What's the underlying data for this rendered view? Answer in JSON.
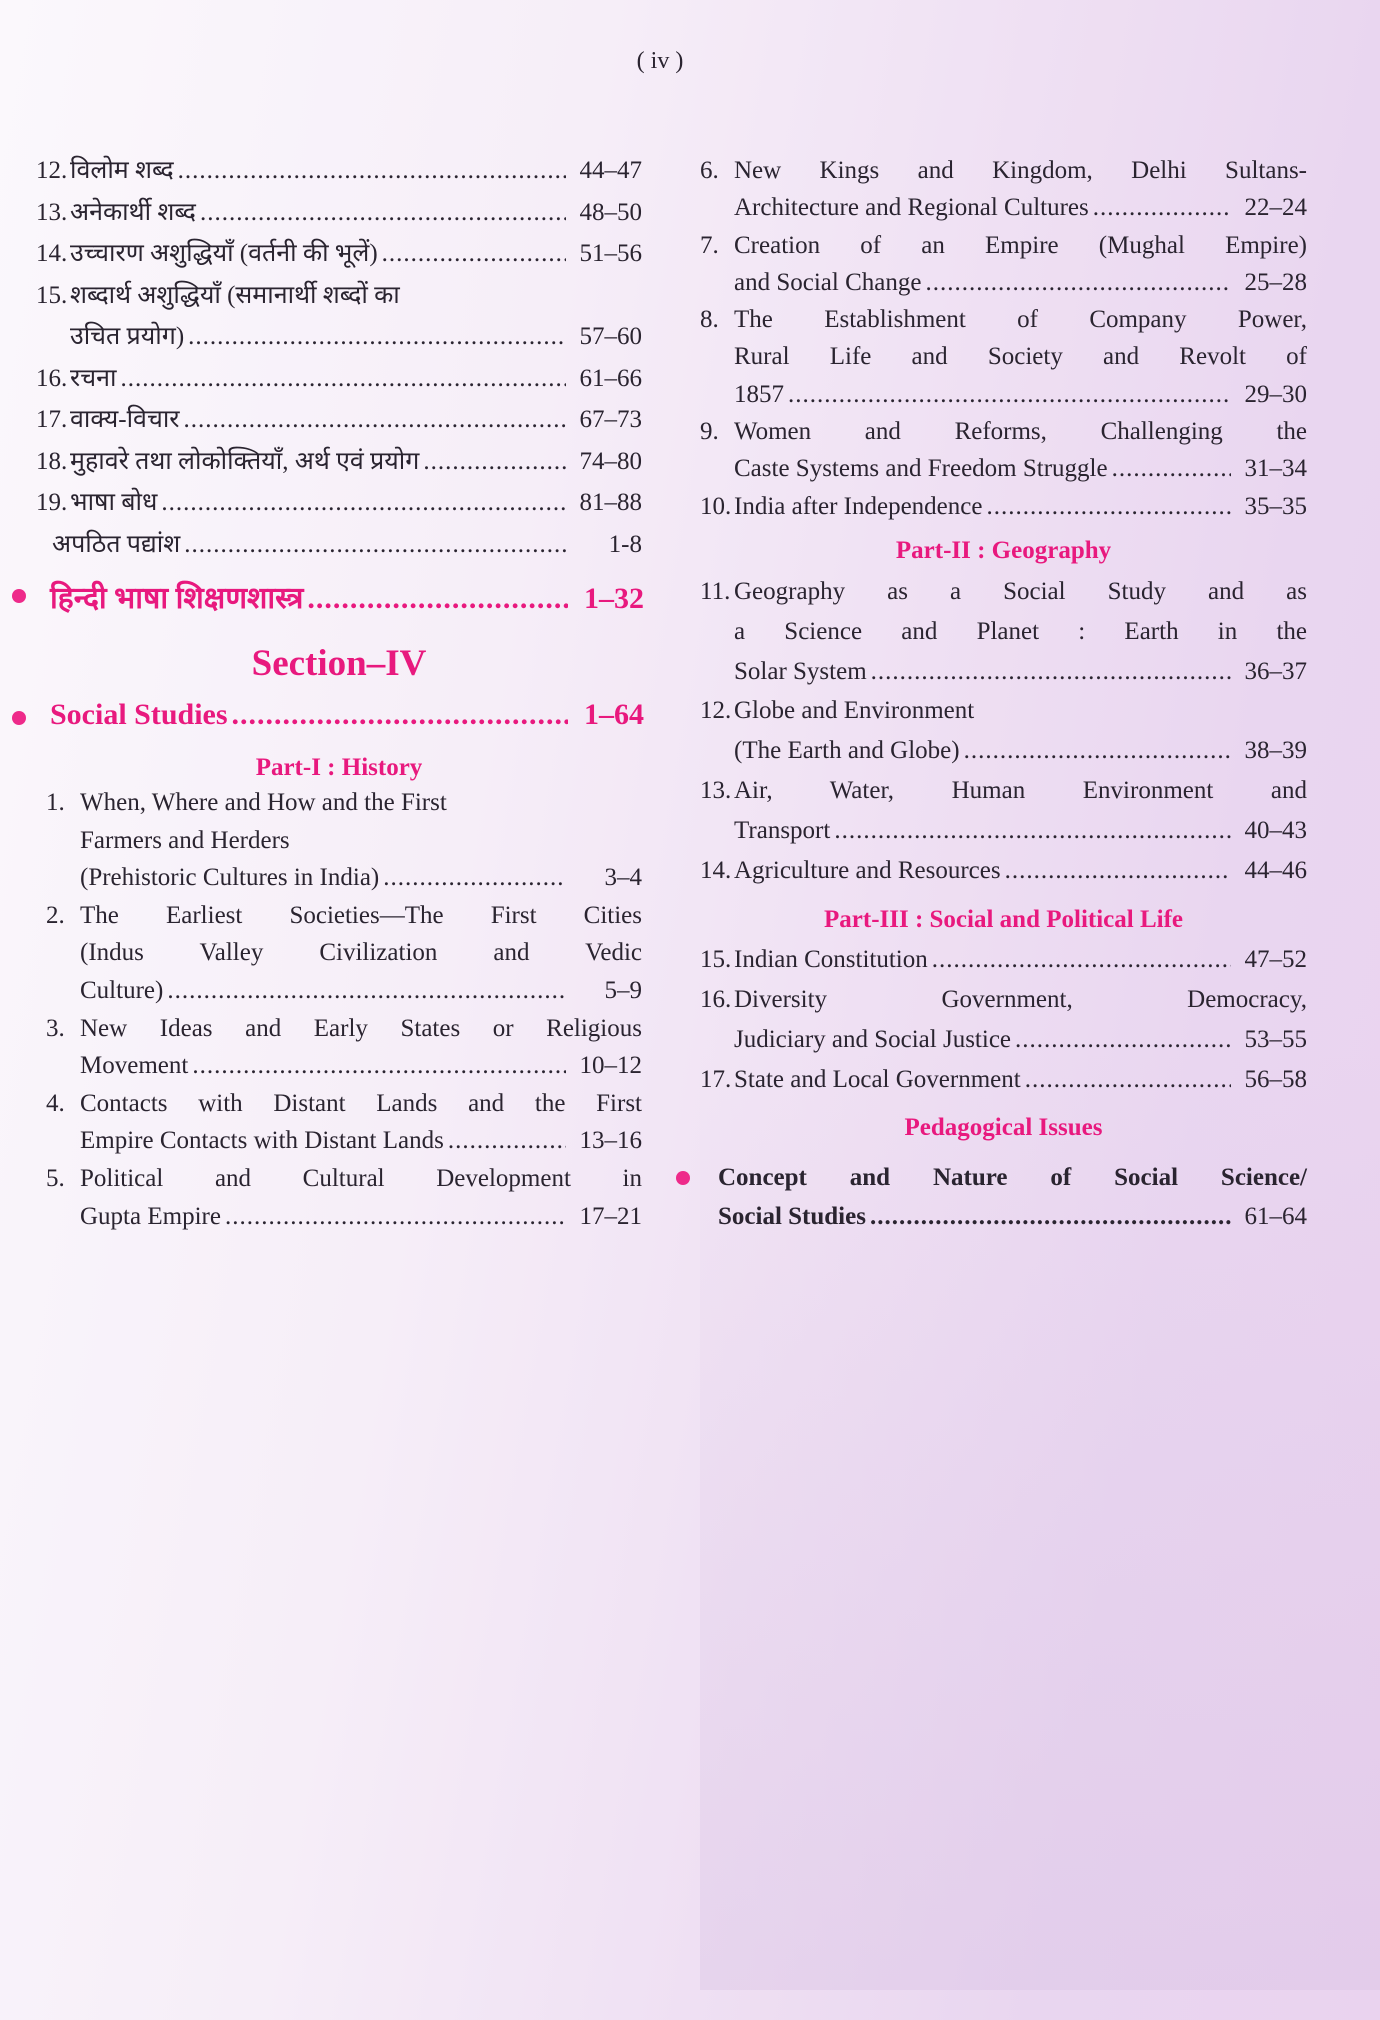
{
  "page_number": "( iv )",
  "colors": {
    "accent": "#e8197e",
    "text": "#2a2430"
  },
  "left": {
    "hindi_items": [
      {
        "num": "12.",
        "lines": [
          "विलोम शब्द"
        ],
        "pages": "44–47"
      },
      {
        "num": "13.",
        "lines": [
          "अनेकार्थी शब्द"
        ],
        "pages": "48–50"
      },
      {
        "num": "14.",
        "lines": [
          "उच्चारण अशुद्धियाँ (वर्तनी की भूलें)"
        ],
        "pages": "51–56"
      },
      {
        "num": "15.",
        "lines": [
          "शब्दार्थ अशुद्धियाँ (समानार्थी शब्दों का",
          "उचित प्रयोग)"
        ],
        "pages": "57–60"
      },
      {
        "num": "16.",
        "lines": [
          "रचना"
        ],
        "pages": "61–66"
      },
      {
        "num": "17.",
        "lines": [
          "वाक्य-विचार"
        ],
        "pages": "67–73"
      },
      {
        "num": "18.",
        "lines": [
          "मुहावरे तथा लोकोक्तियाँ, अर्थ एवं प्रयोग"
        ],
        "pages": "74–80"
      },
      {
        "num": "19.",
        "lines": [
          "भाषा बोध"
        ],
        "pages": "81–88"
      },
      {
        "num": "",
        "lines": [
          "अपठित पद्यांश"
        ],
        "pages": "1-8"
      }
    ],
    "hindi_pedagogy": {
      "label": "हिन्दी भाषा शिक्षणशास्त्र",
      "pages": "1–32"
    },
    "section_title": "Section–IV",
    "social_studies": {
      "label": "Social Studies",
      "pages": "1–64"
    },
    "part1_title": "Part-I : History",
    "history_items": [
      {
        "num": "1.",
        "lines": [
          "When, Where and How and the First",
          "Farmers and Herders",
          "(Prehistoric Cultures in India)"
        ],
        "pages": "3–4"
      },
      {
        "num": "2.",
        "lines": [
          "The Earliest Societies—The First Cities",
          "(Indus Valley Civilization and Vedic",
          "Culture)"
        ],
        "pages": "5–9"
      },
      {
        "num": "3.",
        "lines": [
          "New Ideas and Early States or Religious",
          "Movement"
        ],
        "pages": "10–12"
      },
      {
        "num": "4.",
        "lines": [
          "Contacts with Distant Lands and the First",
          "Empire Contacts with Distant Lands"
        ],
        "pages": "13–16"
      },
      {
        "num": "5.",
        "lines": [
          "Political and Cultural Development in",
          "Gupta Empire"
        ],
        "pages": "17–21"
      }
    ]
  },
  "right": {
    "history_items": [
      {
        "num": "6.",
        "lines": [
          "New Kings and Kingdom, Delhi Sultans-",
          "Architecture and Regional Cultures"
        ],
        "pages": "22–24"
      },
      {
        "num": "7.",
        "lines": [
          "Creation of an Empire (Mughal Empire)",
          "and Social Change"
        ],
        "pages": "25–28"
      },
      {
        "num": "8.",
        "lines": [
          "The Establishment of Company Power,",
          "Rural Life and Society and Revolt of",
          "1857"
        ],
        "pages": "29–30"
      },
      {
        "num": "9.",
        "lines": [
          "Women and Reforms, Challenging the",
          "Caste Systems and Freedom Struggle"
        ],
        "pages": "31–34"
      },
      {
        "num": "10.",
        "lines": [
          "India after Independence"
        ],
        "pages": "35–35"
      }
    ],
    "part2_title": "Part-II : Geography",
    "geography_items": [
      {
        "num": "11.",
        "lines": [
          "Geography as a Social Study and as",
          "a Science and Planet : Earth in the",
          "Solar System"
        ],
        "pages": "36–37"
      },
      {
        "num": "12.",
        "lines": [
          "Globe and Environment",
          "(The Earth and Globe)"
        ],
        "pages": "38–39"
      },
      {
        "num": "13.",
        "lines": [
          "Air, Water, Human Environment and",
          "Transport"
        ],
        "pages": "40–43"
      },
      {
        "num": "14.",
        "lines": [
          "Agriculture and Resources"
        ],
        "pages": "44–46"
      }
    ],
    "part3_title": "Part-III : Social and Political Life",
    "political_items": [
      {
        "num": "15.",
        "lines": [
          "Indian Constitution"
        ],
        "pages": "47–52"
      },
      {
        "num": "16.",
        "lines": [
          "Diversity Government, Democracy,",
          "Judiciary and Social Justice"
        ],
        "pages": "53–55"
      },
      {
        "num": "17.",
        "lines": [
          "State and Local Government"
        ],
        "pages": "56–58"
      }
    ],
    "pedagogy_title": "Pedagogical Issues",
    "pedagogy_item": {
      "lines": [
        "Concept and Nature of Social Science/",
        "Social Studies"
      ],
      "pages": "61–64"
    }
  }
}
